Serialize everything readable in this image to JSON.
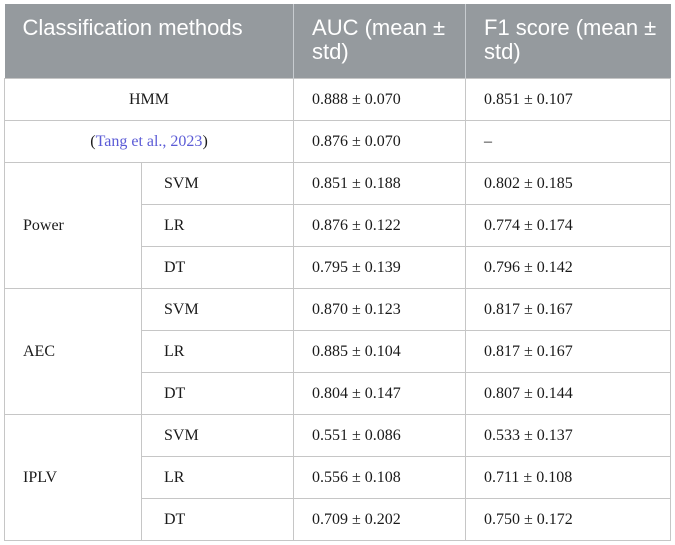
{
  "header": {
    "col1": "Classification methods",
    "col2": "AUC (mean ± std)",
    "col3": "F1 score (mean ± std)"
  },
  "rows": {
    "hmm": {
      "label": "HMM",
      "auc": "0.888 ± 0.070",
      "f1": "0.851 ± 0.107"
    },
    "tang": {
      "open": "(",
      "cite": "Tang et al., 2023",
      "close": ")",
      "auc": "0.876 ± 0.070",
      "f1": "–"
    }
  },
  "groups": [
    {
      "name": "Power",
      "rows": [
        {
          "method": "SVM",
          "auc": "0.851 ± 0.188",
          "f1": "0.802 ± 0.185"
        },
        {
          "method": "LR",
          "auc": "0.876 ± 0.122",
          "f1": "0.774 ± 0.174"
        },
        {
          "method": "DT",
          "auc": "0.795 ± 0.139",
          "f1": "0.796 ± 0.142"
        }
      ]
    },
    {
      "name": "AEC",
      "rows": [
        {
          "method": "SVM",
          "auc": "0.870 ± 0.123",
          "f1": "0.817 ± 0.167"
        },
        {
          "method": "LR",
          "auc": "0.885 ± 0.104",
          "f1": "0.817 ± 0.167"
        },
        {
          "method": "DT",
          "auc": "0.804 ± 0.147",
          "f1": "0.807 ± 0.144"
        }
      ]
    },
    {
      "name": "IPLV",
      "rows": [
        {
          "method": "SVM",
          "auc": "0.551 ± 0.086",
          "f1": "0.533 ± 0.137"
        },
        {
          "method": "LR",
          "auc": "0.556 ± 0.108",
          "f1": "0.711 ± 0.108"
        },
        {
          "method": "DT",
          "auc": "0.709 ± 0.202",
          "f1": "0.750 ± 0.172"
        }
      ]
    }
  ]
}
